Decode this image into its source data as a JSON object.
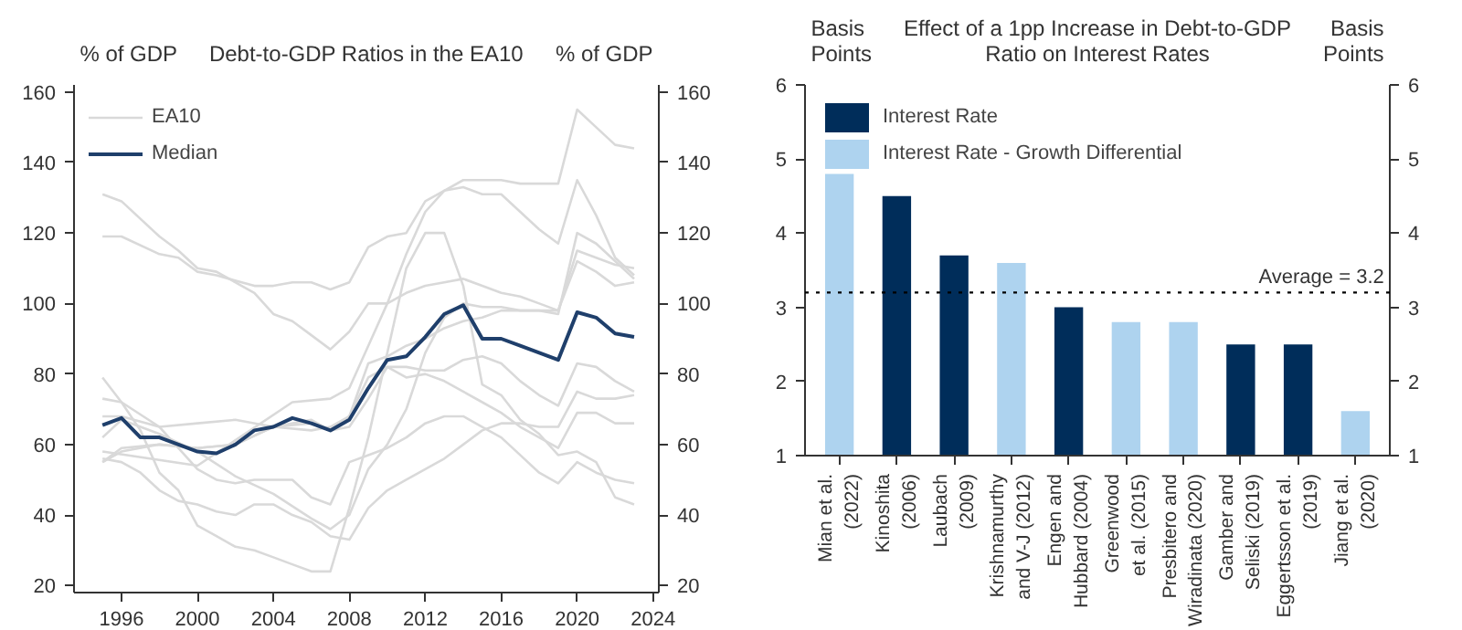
{
  "chart_data": [
    {
      "type": "line",
      "title": "Debt-to-GDP Ratios in the EA10",
      "ylabel": "% of GDP",
      "y2label": "% of GDP",
      "xlim": [
        1993.5,
        2024.3
      ],
      "xticks": [
        1996,
        2000,
        2004,
        2008,
        2012,
        2016,
        2020,
        2024
      ],
      "ylim": [
        18,
        162
      ],
      "yticks": [
        20,
        40,
        60,
        80,
        100,
        120,
        140,
        160
      ],
      "y2lim": [
        18,
        162
      ],
      "y2ticks": [
        20,
        40,
        60,
        80,
        100,
        120,
        140,
        160
      ],
      "grid": false,
      "legend": "top left",
      "line_style": "solid",
      "marker": "none",
      "series": [
        {
          "name": "EA10",
          "color": "#d9d9d9",
          "x": [
            1995,
            1996,
            1998,
            1999,
            2000,
            2001,
            2003,
            2004,
            2005,
            2006,
            2007,
            2008,
            2009,
            2010,
            2011,
            2012,
            2013,
            2014,
            2015,
            2016,
            2017,
            2018,
            2019,
            2020,
            2021,
            2022,
            2023
          ],
          "values": [
            131,
            129,
            119,
            115,
            110,
            109,
            103,
            97,
            95,
            91,
            87,
            92,
            100,
            100,
            103,
            105,
            106,
            107,
            105,
            103,
            102,
            100,
            98,
            112,
            109,
            105,
            106
          ]
        },
        {
          "color": "#d9d9d9",
          "x": [
            1995,
            1996,
            1998,
            1999,
            2000,
            2001,
            2003,
            2004,
            2005,
            2006,
            2007,
            2008,
            2009,
            2010,
            2011,
            2012,
            2013,
            2014,
            2015,
            2016,
            2017,
            2018,
            2019,
            2020,
            2021,
            2022,
            2023
          ],
          "values": [
            119,
            119,
            114,
            113,
            109,
            108,
            105,
            105,
            106,
            106,
            104,
            106,
            116,
            119,
            120,
            129,
            132,
            135,
            135,
            135,
            134,
            134,
            134,
            155,
            150,
            145,
            144
          ]
        },
        {
          "color": "#d9d9d9",
          "x": [
            1995,
            2000,
            2005,
            2007,
            2008,
            2009,
            2010,
            2011,
            2012,
            2013,
            2014,
            2015,
            2016,
            2017,
            2018,
            2019,
            2020,
            2021,
            2022,
            2023
          ],
          "values": [
            58,
            54,
            72,
            73,
            76,
            88,
            100,
            114,
            126,
            132,
            133,
            131,
            131,
            126,
            121,
            117,
            135,
            125,
            113,
            108
          ]
        },
        {
          "color": "#d9d9d9",
          "x": [
            1995,
            1996,
            1997,
            1998,
            1999,
            2000,
            2001,
            2002,
            2003,
            2004,
            2005,
            2006,
            2007,
            2008,
            2009,
            2010,
            2011,
            2012,
            2013,
            2014,
            2015,
            2016,
            2017,
            2018,
            2019,
            2020,
            2021,
            2022,
            2023
          ],
          "values": [
            79,
            72,
            64,
            52,
            47,
            37,
            34,
            31,
            30,
            28,
            26,
            24,
            24,
            42,
            62,
            86,
            110,
            120,
            120,
            105,
            77,
            74,
            67,
            63,
            57,
            58,
            55,
            45,
            43
          ]
        },
        {
          "color": "#d9d9d9",
          "x": [
            1995,
            1996,
            1998,
            2000,
            2002,
            2004,
            2006,
            2007,
            2008,
            2009,
            2010,
            2011,
            2012,
            2013,
            2014,
            2015,
            2016,
            2017,
            2018,
            2019,
            2020,
            2021,
            2022,
            2023
          ],
          "values": [
            62,
            67,
            63,
            58,
            51,
            46,
            39,
            36,
            40,
            53,
            60,
            70,
            86,
            96,
            100,
            99,
            99,
            98,
            98,
            97,
            120,
            117,
            112,
            107
          ]
        },
        {
          "color": "#d9d9d9",
          "x": [
            1995,
            1996,
            1998,
            2000,
            2002,
            2004,
            2006,
            2007,
            2008,
            2009,
            2010,
            2011,
            2012,
            2013,
            2014,
            2015,
            2016,
            2017,
            2018,
            2019,
            2020,
            2021,
            2022,
            2023
          ],
          "values": [
            55,
            59,
            60,
            59,
            60,
            65,
            64,
            65,
            68,
            83,
            85,
            88,
            90,
            93,
            95,
            96,
            98,
            98,
            98,
            98,
            115,
            113,
            111,
            110
          ]
        },
        {
          "color": "#d9d9d9",
          "x": [
            1995,
            1996,
            1998,
            2000,
            2002,
            2004,
            2006,
            2007,
            2008,
            2009,
            2010,
            2011,
            2012,
            2013,
            2014,
            2015,
            2016,
            2017,
            2018,
            2019,
            2020,
            2021,
            2022,
            2023
          ],
          "values": [
            68,
            68,
            65,
            66,
            67,
            65,
            67,
            64,
            68,
            79,
            82,
            82,
            81,
            81,
            84,
            85,
            83,
            78,
            74,
            71,
            83,
            82,
            78,
            75
          ]
        },
        {
          "color": "#d9d9d9",
          "x": [
            1995,
            1996,
            1998,
            2000,
            2002,
            2004,
            2006,
            2007,
            2008,
            2009,
            2010,
            2011,
            2012,
            2013,
            2014,
            2015,
            2016,
            2017,
            2018,
            2019,
            2020,
            2021,
            2022,
            2023
          ],
          "values": [
            55,
            58,
            60,
            59,
            60,
            65,
            66,
            64,
            65,
            73,
            82,
            79,
            80,
            78,
            75,
            72,
            69,
            65,
            62,
            59,
            69,
            69,
            66,
            66
          ]
        },
        {
          "color": "#d9d9d9",
          "x": [
            1995,
            1996,
            1998,
            2000,
            2001,
            2002,
            2003,
            2004,
            2005,
            2006,
            2007,
            2008,
            2009,
            2010,
            2011,
            2012,
            2013,
            2014,
            2015,
            2016,
            2017,
            2018,
            2019,
            2020,
            2021,
            2022,
            2023
          ],
          "values": [
            73,
            72,
            65,
            53,
            50,
            49,
            50,
            50,
            50,
            45,
            43,
            55,
            57,
            59,
            62,
            66,
            68,
            68,
            65,
            62,
            57,
            52,
            49,
            55,
            52,
            50,
            49
          ]
        },
        {
          "color": "#d9d9d9",
          "x": [
            1995,
            1996,
            1997,
            1998,
            1999,
            2000,
            2001,
            2002,
            2003,
            2004,
            2005,
            2006,
            2007,
            2008,
            2009,
            2010,
            2011,
            2012,
            2013,
            2014,
            2015,
            2016,
            2017,
            2018,
            2019,
            2020,
            2021,
            2022,
            2023
          ],
          "values": [
            56,
            55,
            52,
            47,
            44,
            43,
            41,
            40,
            43,
            43,
            40,
            38,
            34,
            33,
            42,
            47,
            50,
            53,
            56,
            60,
            64,
            66,
            66,
            65,
            65,
            75,
            73,
            73,
            74
          ]
        },
        {
          "name": "Median",
          "color": "#1f3f6b",
          "x": [
            1995,
            1996,
            1997,
            1998,
            1999,
            2000,
            2001,
            2002,
            2003,
            2004,
            2005,
            2006,
            2007,
            2008,
            2009,
            2010,
            2011,
            2012,
            2013,
            2014,
            2015,
            2016,
            2017,
            2018,
            2019,
            2020,
            2021,
            2022,
            2023
          ],
          "values": [
            65.5,
            67.5,
            62,
            62,
            60,
            58,
            57.5,
            60,
            64,
            65,
            67.5,
            66,
            64,
            67,
            76,
            84,
            85,
            90.5,
            97,
            99.5,
            90,
            90,
            88,
            86,
            84,
            97.5,
            96,
            91.5,
            90.5
          ]
        }
      ]
    },
    {
      "type": "bar",
      "title": "Effect of a 1pp Increase in Debt-to-GDP\nRatio on Interest Rates",
      "ylabel": "Basis\nPoints",
      "y2label": "Basis\nPoints",
      "ylim": [
        1,
        6
      ],
      "yticks": [
        1,
        2,
        3,
        4,
        5,
        6
      ],
      "y2lim": [
        1,
        6
      ],
      "y2ticks": [
        1,
        2,
        3,
        4,
        5,
        6
      ],
      "grid": false,
      "legend": "top left",
      "categories": [
        "Mian et al.\n(2022)",
        "Kinoshita\n(2006)",
        "Laubach\n(2009)",
        "Krishnamurthy\nand V-J (2012)",
        "Engen and\nHubbard (2004)",
        "Greenwood\net al. (2015)",
        "Presbitero and\nWiradinata (2020)",
        "Gamber and\nSeliski (2019)",
        "Eggertsson et al.\n(2019)",
        "Jiang et al.\n(2020)"
      ],
      "series": [
        {
          "name": "Interest Rate",
          "color": "#002d5a",
          "values": [
            null,
            4.5,
            3.7,
            null,
            3.0,
            null,
            null,
            2.5,
            2.5,
            null
          ]
        },
        {
          "name": "Interest Rate - Growth Differential",
          "color": "#aed3ef",
          "values": [
            4.8,
            null,
            null,
            3.6,
            null,
            2.8,
            2.8,
            null,
            null,
            1.6
          ]
        }
      ],
      "ref_lines": [
        {
          "axis": "y",
          "value": 3.2,
          "label": "Average = 3.2",
          "color": "#000000",
          "line_style": "dotted"
        }
      ]
    }
  ]
}
